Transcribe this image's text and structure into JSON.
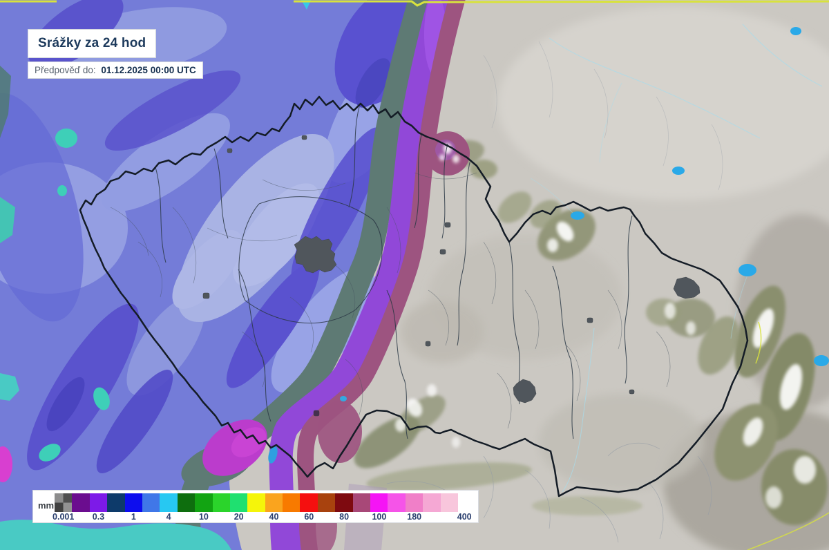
{
  "header": {
    "title": "Srážky za 24 hod",
    "forecast_label": "Předpověď do:",
    "forecast_datetime": "01.12.2025 00:00 UTC"
  },
  "legend": {
    "unit": "mm",
    "tick_labels": [
      "0.001",
      "0.3",
      "1",
      "4",
      "10",
      "20",
      "40",
      "60",
      "80",
      "100",
      "180",
      "400"
    ],
    "label_color": "#2b3f6e",
    "swatches": [
      {
        "name": "below-threshold-checker",
        "checker": [
          "#8c8c8c",
          "#4f4f4f",
          "#404040",
          "#929292"
        ]
      },
      {
        "name": "level-1",
        "color": "#6b0d8f"
      },
      {
        "name": "level-2",
        "color": "#7d1ae8"
      },
      {
        "name": "level-3",
        "color": "#0d3a6a"
      },
      {
        "name": "level-4",
        "color": "#0d0dee"
      },
      {
        "name": "level-5",
        "color": "#4077e8"
      },
      {
        "name": "level-6",
        "color": "#27c8f2"
      },
      {
        "name": "level-7",
        "color": "#0e6e0e"
      },
      {
        "name": "level-8",
        "color": "#12a412"
      },
      {
        "name": "level-9",
        "color": "#2bd42b"
      },
      {
        "name": "level-10",
        "color": "#1fe070"
      },
      {
        "name": "level-11",
        "color": "#f5f50a"
      },
      {
        "name": "level-12",
        "color": "#faa41e"
      },
      {
        "name": "level-13",
        "color": "#f87a00"
      },
      {
        "name": "level-14",
        "color": "#f50f0f"
      },
      {
        "name": "level-15",
        "color": "#a8420e"
      },
      {
        "name": "level-16",
        "color": "#7e0a10"
      },
      {
        "name": "level-17",
        "color": "#a84878"
      },
      {
        "name": "level-18",
        "color": "#f514f5"
      },
      {
        "name": "level-19",
        "color": "#f554e8"
      },
      {
        "name": "level-20",
        "color": "#f07fc8"
      },
      {
        "name": "level-21",
        "color": "#f5a8d4"
      },
      {
        "name": "level-22",
        "color": "#f8c6dc"
      }
    ]
  },
  "map": {
    "colors": {
      "terrain": "#cbc8c2",
      "terrain_shadow": "#b0aca5",
      "forest_green": "#8a8f6e",
      "snow": "#ffffff",
      "czech_border": "#141c26",
      "region_border": "#2c3946",
      "district_border": "#46525f",
      "river": "#a7dcec",
      "lake": "#2aa9e8",
      "national_border_yellow": "#d8e23e",
      "rain_blue_base": "#747cd8",
      "rain_blue_light": "#98a3e6",
      "rain_blue_pale": "#b2bbe8",
      "rain_blue_dark": "#5a52cf",
      "rain_teal_band": "#5e7a74",
      "rain_purple_band": "#9148d8",
      "rain_magenta": "#bb3ccc",
      "rain_raspberry": "#9d5480",
      "rain_turquoise": "#49cac4",
      "rain_teal_spot": "#3ecfb8",
      "city": "#50565c"
    }
  }
}
